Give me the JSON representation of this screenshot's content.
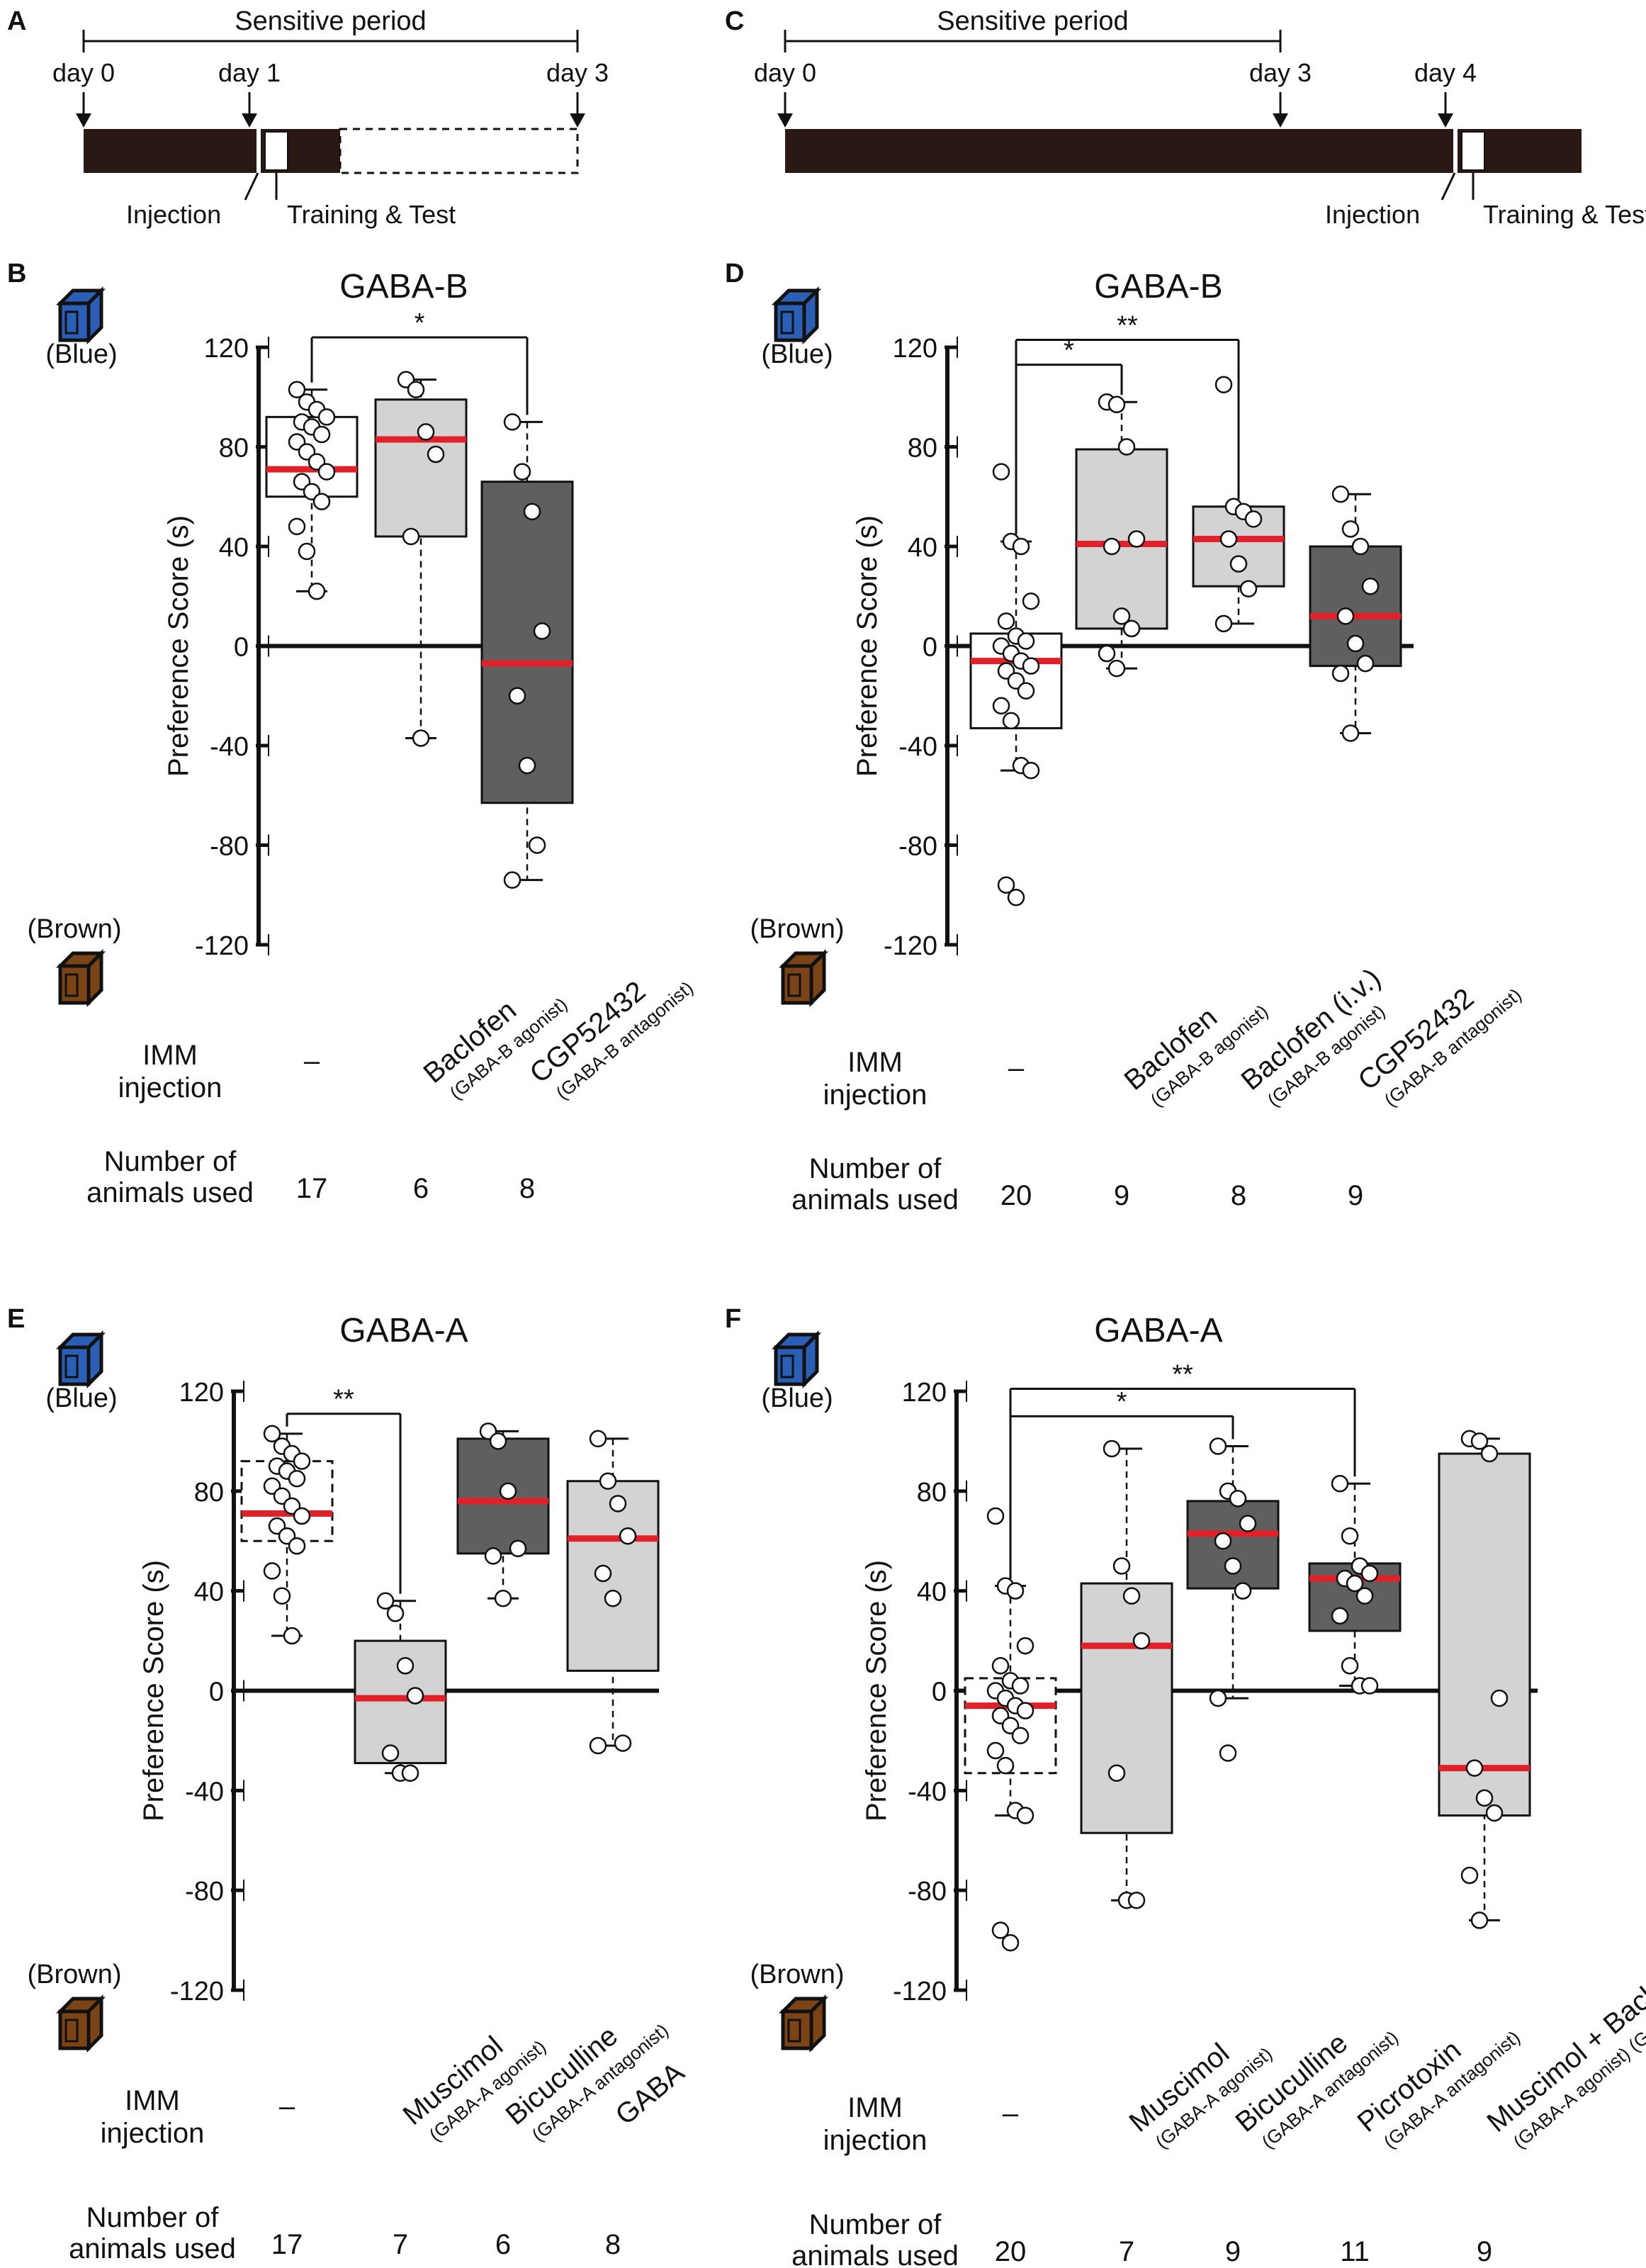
{
  "timelines": [
    {
      "id": "A",
      "letter": "A",
      "period_label": "Sensitive period",
      "days": [
        "day 0",
        "day 1",
        "day 3"
      ],
      "labels": [
        "Injection",
        "Training & Test"
      ]
    },
    {
      "id": "C",
      "letter": "C",
      "period_label": "Sensitive period",
      "days": [
        "day 0",
        "day 3",
        "day 4"
      ],
      "labels": [
        "Injection",
        "Training & Test"
      ]
    }
  ],
  "row_labels": {
    "imm_line1": "IMM",
    "imm_line2": "injection",
    "num_line1": "Number of",
    "num_line2": "animals used"
  },
  "side_labels": {
    "blue": "(Blue)",
    "brown": "(Brown)"
  },
  "colors": {
    "white_box": "#ffffff",
    "light_box": "#d3d3d3",
    "dark_box": "#5f5f5f",
    "median": "#e0212a",
    "blue_icon": "#2a5fb5",
    "brown_icon": "#7a4416"
  },
  "chart_data": [
    {
      "id": "B",
      "letter": "B",
      "type": "box",
      "title": "GABA-B",
      "ylabel": "Preference Score (s)",
      "ylim": [
        -120,
        120
      ],
      "yticks": [
        "120",
        "80",
        "40",
        "0",
        "-40",
        "-80",
        "-120"
      ],
      "groups": [
        {
          "label": "–",
          "sublabel": "",
          "n": "17",
          "fill": "white",
          "dashed": false,
          "q1": 60,
          "median": 71,
          "q3": 92,
          "wmin": 22,
          "wmax": 103,
          "points": [
            103,
            98,
            95,
            92,
            90,
            88,
            85,
            82,
            78,
            74,
            70,
            66,
            62,
            58,
            48,
            38,
            22
          ]
        },
        {
          "label": "Baclofen",
          "sublabel": "(GABA-B agonist)",
          "n": "6",
          "fill": "light",
          "dashed": false,
          "q1": 44,
          "median": 83,
          "q3": 99,
          "wmin": -37,
          "wmax": 107,
          "points": [
            107,
            103,
            86,
            77,
            44,
            -37
          ]
        },
        {
          "label": "CGP52432",
          "sublabel": "(GABA-B antagonist)",
          "n": "8",
          "fill": "dark",
          "dashed": false,
          "q1": -63,
          "median": -7,
          "q3": 66,
          "wmin": -94,
          "wmax": 90,
          "points": [
            90,
            70,
            54,
            6,
            -20,
            -48,
            -80,
            -94
          ]
        }
      ],
      "significance": [
        {
          "from": 0,
          "to": 2,
          "label": "*",
          "level": 124,
          "color": "#888888"
        }
      ]
    },
    {
      "id": "D",
      "letter": "D",
      "type": "box",
      "title": "GABA-B",
      "ylabel": "Preference Score (s)",
      "ylim": [
        -120,
        120
      ],
      "yticks": [
        "120",
        "80",
        "40",
        "0",
        "-40",
        "-80",
        "-120"
      ],
      "groups": [
        {
          "label": "–",
          "sublabel": "",
          "n": "20",
          "fill": "white",
          "dashed": false,
          "q1": -33,
          "median": -6,
          "q3": 5,
          "wmin": -50,
          "wmax": 42,
          "points": [
            70,
            42,
            40,
            18,
            10,
            4,
            2,
            0,
            -3,
            -6,
            -8,
            -10,
            -14,
            -18,
            -24,
            -30,
            -48,
            -50,
            -96,
            -101
          ]
        },
        {
          "label": "Baclofen",
          "sublabel": "(GABA-B agonist)",
          "n": "9",
          "fill": "light",
          "dashed": false,
          "q1": 7,
          "median": 41,
          "q3": 79,
          "wmin": -9,
          "wmax": 98,
          "points": [
            98,
            97,
            80,
            43,
            40,
            12,
            7,
            -3,
            -9
          ]
        },
        {
          "label": "Baclofen (i.v.)",
          "sublabel": "(GABA-B agonist)",
          "n": "8",
          "fill": "light",
          "dashed": false,
          "q1": 24,
          "median": 43,
          "q3": 56,
          "wmin": 9,
          "wmax": 56,
          "points": [
            105,
            56,
            54,
            51,
            43,
            33,
            23,
            9
          ]
        },
        {
          "label": "CGP52432",
          "sublabel": "(GABA-B antagonist)",
          "n": "9",
          "fill": "dark",
          "dashed": false,
          "q1": -8,
          "median": 12,
          "q3": 40,
          "wmin": -35,
          "wmax": 61,
          "points": [
            61,
            47,
            40,
            24,
            12,
            1,
            -7,
            -11,
            -35
          ]
        }
      ],
      "significance": [
        {
          "from": 0,
          "to": 1,
          "label": "*",
          "level": 113,
          "color": "#111111"
        },
        {
          "from": 0,
          "to": 2,
          "label": "**",
          "level": 123,
          "color": "#111111"
        }
      ]
    },
    {
      "id": "E",
      "letter": "E",
      "type": "box",
      "title": "GABA-A",
      "ylabel": "Preference Score (s)",
      "ylim": [
        -120,
        120
      ],
      "yticks": [
        "120",
        "80",
        "40",
        "0",
        "-40",
        "-80",
        "-120"
      ],
      "groups": [
        {
          "label": "–",
          "sublabel": "",
          "n": "17",
          "fill": "white",
          "dashed": true,
          "q1": 60,
          "median": 71,
          "q3": 92,
          "wmin": 22,
          "wmax": 103,
          "points": [
            103,
            98,
            95,
            92,
            90,
            88,
            85,
            82,
            78,
            74,
            70,
            66,
            62,
            58,
            48,
            38,
            22
          ]
        },
        {
          "label": "Muscimol",
          "sublabel": "(GABA-A agonist)",
          "n": "7",
          "fill": "light",
          "dashed": false,
          "q1": -29,
          "median": -3,
          "q3": 20,
          "wmin": -33,
          "wmax": 36,
          "points": [
            36,
            31,
            10,
            -2,
            -25,
            -33,
            -33
          ]
        },
        {
          "label": "Bicuculline",
          "sublabel": "(GABA-A antagonist)",
          "n": "6",
          "fill": "dark",
          "dashed": false,
          "q1": 55,
          "median": 76,
          "q3": 101,
          "wmin": 37,
          "wmax": 104,
          "points": [
            104,
            100,
            80,
            57,
            54,
            37
          ]
        },
        {
          "label": "GABA",
          "sublabel": "",
          "n": "8",
          "fill": "light",
          "dashed": false,
          "q1": 8,
          "median": 61,
          "q3": 84,
          "wmin": -22,
          "wmax": 101,
          "points": [
            101,
            84,
            75,
            62,
            47,
            37,
            -21,
            -22
          ]
        }
      ],
      "significance": [
        {
          "from": 0,
          "to": 1,
          "label": "**",
          "level": 111,
          "color": "#111111"
        }
      ]
    },
    {
      "id": "F",
      "letter": "F",
      "type": "box",
      "title": "GABA-A",
      "ylabel": "Preference Score (s)",
      "ylim": [
        -120,
        120
      ],
      "yticks": [
        "120",
        "80",
        "40",
        "0",
        "-40",
        "-80",
        "-120"
      ],
      "groups": [
        {
          "label": "–",
          "sublabel": "",
          "n": "20",
          "fill": "white",
          "dashed": true,
          "q1": -33,
          "median": -6,
          "q3": 5,
          "wmin": -50,
          "wmax": 42,
          "points": [
            70,
            42,
            40,
            18,
            10,
            4,
            2,
            0,
            -3,
            -6,
            -8,
            -10,
            -14,
            -18,
            -24,
            -30,
            -48,
            -50,
            -96,
            -101
          ]
        },
        {
          "label": "Muscimol",
          "sublabel": "(GABA-A agonist)",
          "n": "7",
          "fill": "light",
          "dashed": false,
          "q1": -57,
          "median": 18,
          "q3": 43,
          "wmin": -84,
          "wmax": 97,
          "points": [
            97,
            50,
            38,
            20,
            -33,
            -84,
            -84
          ]
        },
        {
          "label": "Bicuculline",
          "sublabel": "(GABA-A antagonist)",
          "n": "9",
          "fill": "dark",
          "dashed": false,
          "q1": 41,
          "median": 63,
          "q3": 76,
          "wmin": -3,
          "wmax": 98,
          "points": [
            98,
            80,
            77,
            67,
            60,
            50,
            40,
            -3,
            -25
          ]
        },
        {
          "label": "Picrotoxin",
          "sublabel": "(GABA-A antagonist)",
          "n": "11",
          "fill": "dark",
          "dashed": false,
          "q1": 24,
          "median": 45,
          "q3": 51,
          "wmin": 2,
          "wmax": 83,
          "points": [
            83,
            62,
            50,
            47,
            45,
            43,
            38,
            30,
            10,
            2,
            2
          ]
        },
        {
          "label": "Muscimol + Baclofen (i.v.)",
          "sublabel": "(GABA-A agonist) (GABA-B agonist)",
          "n": "9",
          "fill": "light",
          "dashed": false,
          "q1": -50,
          "median": -31,
          "q3": 95,
          "wmin": -92,
          "wmax": 101,
          "points": [
            101,
            100,
            95,
            -3,
            -31,
            -43,
            -49,
            -74,
            -92
          ]
        }
      ],
      "significance": [
        {
          "from": 0,
          "to": 2,
          "label": "*",
          "level": 110,
          "color": "#111111"
        },
        {
          "from": 0,
          "to": 3,
          "label": "**",
          "level": 121,
          "color": "#111111"
        }
      ]
    }
  ]
}
